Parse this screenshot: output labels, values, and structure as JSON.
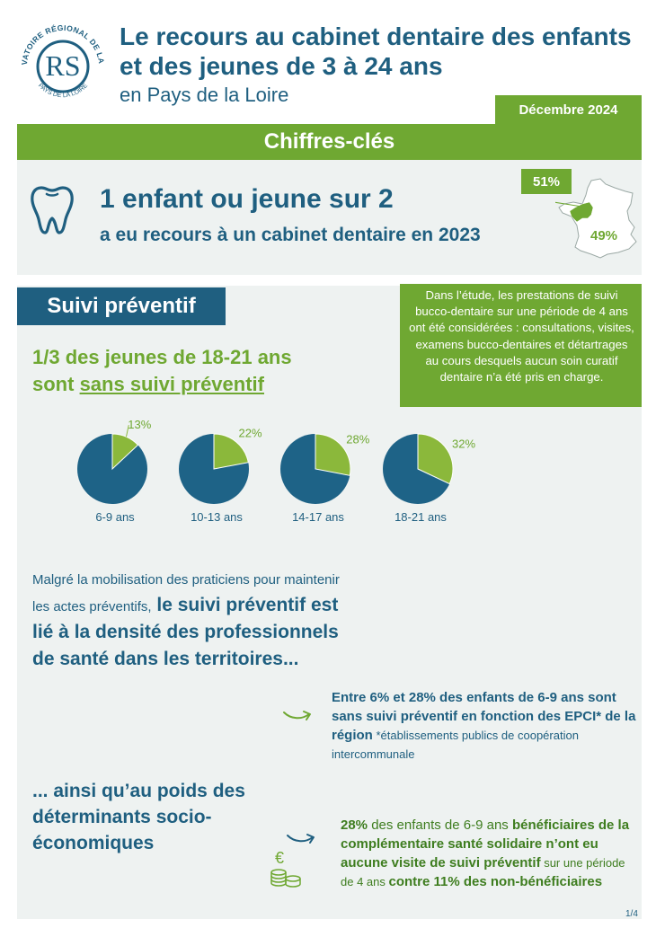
{
  "header": {
    "logo_top_text": "OBSERVATOIRE RÉGIONAL DE LA SANTÉ",
    "logo_bottom_text": "PAYS DE LA LOIRE",
    "logo_monogram": "RS",
    "title_line1": "Le recours au cabinet dentaire des enfants",
    "title_line2": "et des jeunes de 3 à 24 ans",
    "subtitle": "en Pays de la Loire",
    "date": "Décembre 2024"
  },
  "key_figures": {
    "band_title": "Chiffres-clés",
    "stat": "1 enfant ou jeune sur 2",
    "stat_sub": "a eu recours à un cabinet dentaire en 2023",
    "region_pct": "51%",
    "france_pct": "49%",
    "icons": [
      "tooth-icon",
      "france-map"
    ]
  },
  "preventive": {
    "section_title": "Suivi préventif",
    "note": "Dans l’étude, les prestations de suivi bucco-dentaire sur une période de 4 ans ont été considérées : consultations, visites, examens bucco-dentaires et détartrages au cours desquels aucun soin curatif dentaire n’a été pris en charge.",
    "stat_line1": "1/3 des jeunes de 18-21 ans",
    "stat_line2_prefix": "sont ",
    "stat_line2_underlined": "sans suivi préventif"
  },
  "chart_data": {
    "type": "pie",
    "categories": [
      "6-9 ans",
      "10-13 ans",
      "14-17 ans",
      "18-21 ans"
    ],
    "values": [
      13,
      22,
      28,
      32
    ],
    "labels": [
      "13%",
      "22%",
      "28%",
      "32%"
    ],
    "colors": {
      "highlight": "#8bb83b",
      "rest": "#1e6387"
    }
  },
  "paragraph": {
    "intro": "Malgré la mobilisation des praticiens pour maintenir les actes préventifs,",
    "bold": " le suivi préventif est lié à la densité des professionnels de santé dans les territoires..."
  },
  "fact1": {
    "bold": "Entre 6% et 28% des enfants de 6-9 ans sont sans suivi préventif en fonction des EPCI*  de la région",
    "small": " *établissements publics de coopération intercommunale"
  },
  "heading2": "... ainsi qu’au poids des déterminants socio-économiques",
  "fact2": {
    "pct": "28%",
    "normal1": " des enfants de 6-9 ans ",
    "bold1": "bénéficiaires de la complémentaire santé solidaire n’ont eu aucune visite de suivi préventif",
    "small": " sur une période de 4 ans ",
    "bold2": "contre 11% des non-bénéficiaires"
  },
  "page": "1/4"
}
